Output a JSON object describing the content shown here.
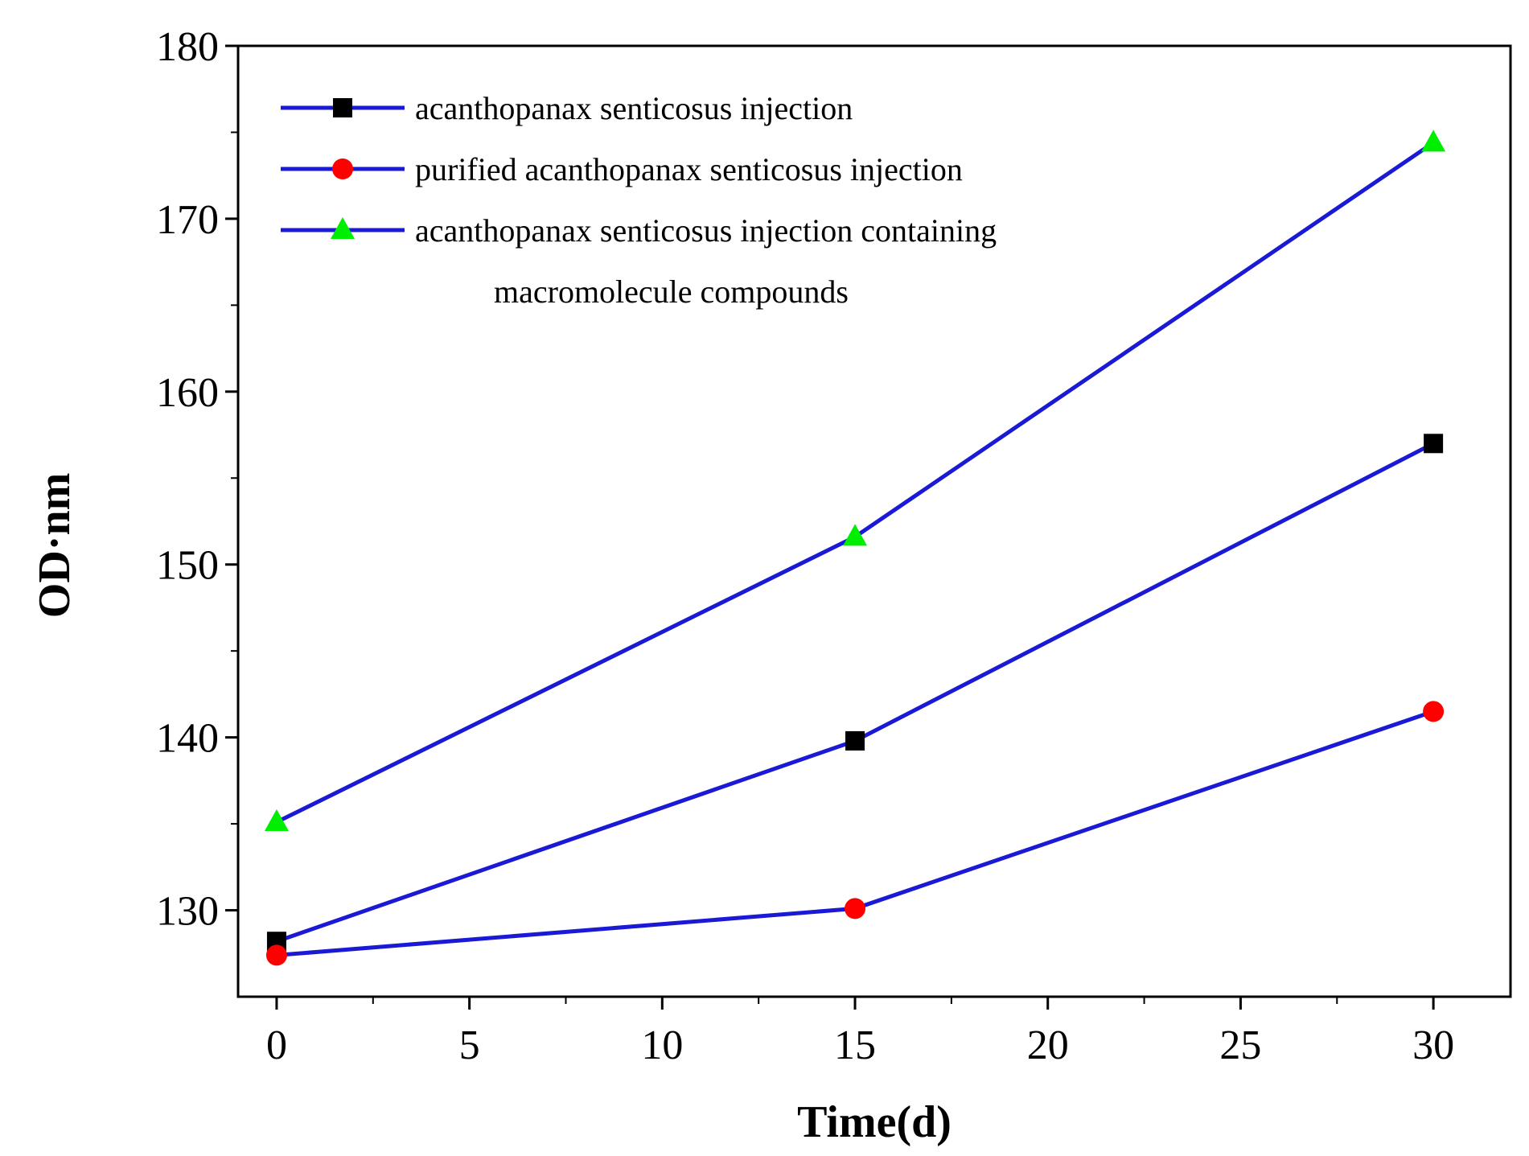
{
  "chart_data": {
    "type": "line",
    "xlabel": "Time(d)",
    "ylabel": "OD·nm",
    "xlim": [
      -1,
      32
    ],
    "ylim": [
      125,
      180
    ],
    "x_major_ticks": [
      0,
      5,
      10,
      15,
      20,
      25,
      30
    ],
    "y_major_ticks": [
      130,
      140,
      150,
      160,
      170,
      180
    ],
    "x_minor_ticks": [
      2.5,
      7.5,
      12.5,
      17.5,
      22.5,
      27.5
    ],
    "y_minor_ticks": [
      135,
      145,
      155,
      165,
      175
    ],
    "x": [
      0,
      15,
      30
    ],
    "legend_position": "top-left",
    "line_color": "#1a1ad6",
    "series": [
      {
        "name": "acanthopanax senticosus injection",
        "marker": "square",
        "marker_color": "#000000",
        "values": [
          128.2,
          139.8,
          157.0
        ]
      },
      {
        "name": "purified acanthopanax senticosus injection",
        "marker": "circle",
        "marker_color": "#ff0000",
        "values": [
          127.4,
          130.1,
          141.5
        ]
      },
      {
        "name": "acanthopanax senticosus injection containing",
        "name_line2": "macromolecule compounds",
        "marker": "triangle",
        "marker_color": "#00ee00",
        "values": [
          135.1,
          151.6,
          174.4
        ]
      }
    ]
  }
}
